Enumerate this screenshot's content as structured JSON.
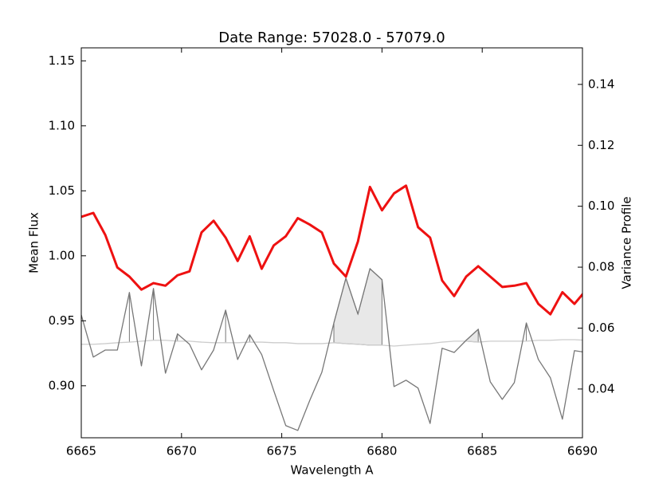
{
  "chart_data": {
    "type": "line",
    "title": "Date Range: 57028.0 - 57079.0",
    "xlabel": "Wavelength A",
    "ylabel": "Mean Flux",
    "y2label": "Variance Profile",
    "x": [
      6665.0,
      6665.6,
      6666.2,
      6666.8,
      6667.4,
      6668.0,
      6668.6,
      6669.2,
      6669.8,
      6670.4,
      6671.0,
      6671.6,
      6672.2,
      6672.8,
      6673.4,
      6674.0,
      6674.6,
      6675.2,
      6675.8,
      6676.4,
      6677.0,
      6677.6,
      6678.2,
      6678.8,
      6679.4,
      6680.0,
      6680.6,
      6681.2,
      6681.8,
      6682.4,
      6683.0,
      6683.6,
      6684.2,
      6684.8,
      6685.4,
      6686.0,
      6686.6,
      6687.2,
      6687.8,
      6688.4,
      6689.0,
      6689.6,
      6690.2
    ],
    "series": [
      {
        "color": "#ee1111",
        "axis": "y",
        "values": [
          1.03,
          1.033,
          1.016,
          0.991,
          0.984,
          0.974,
          0.979,
          0.977,
          0.985,
          0.988,
          1.018,
          1.027,
          1.014,
          0.996,
          1.015,
          0.99,
          1.008,
          1.015,
          1.029,
          1.024,
          1.018,
          0.994,
          0.984,
          1.011,
          1.053,
          1.035,
          1.048,
          1.054,
          1.022,
          1.014,
          0.981,
          0.969,
          0.984,
          0.992,
          0.984,
          0.976,
          0.977,
          0.979,
          0.963,
          0.955,
          0.972,
          0.963,
          0.974
        ]
      },
      {
        "color": "#777777",
        "axis": "y2",
        "fill": "#e8e8e8",
        "values": [
          0.0643,
          0.0505,
          0.0528,
          0.0528,
          0.0717,
          0.0476,
          0.073,
          0.0452,
          0.0581,
          0.0547,
          0.0463,
          0.0528,
          0.0659,
          0.0497,
          0.0578,
          0.0513,
          0.0395,
          0.028,
          0.0264,
          0.0363,
          0.0455,
          0.0617,
          0.0764,
          0.0646,
          0.0795,
          0.0759,
          0.0408,
          0.0429,
          0.0403,
          0.0287,
          0.0534,
          0.052,
          0.056,
          0.0596,
          0.0424,
          0.0366,
          0.0421,
          0.0617,
          0.0497,
          0.0437,
          0.0301,
          0.0526,
          0.052
        ]
      },
      {
        "color": "#cccccc",
        "axis": "y2",
        "values": [
          0.0547,
          0.0547,
          0.0549,
          0.0552,
          0.0554,
          0.0557,
          0.056,
          0.056,
          0.0557,
          0.0557,
          0.0554,
          0.0552,
          0.0552,
          0.0552,
          0.0554,
          0.0554,
          0.0552,
          0.0552,
          0.0549,
          0.0549,
          0.0549,
          0.0552,
          0.0549,
          0.0547,
          0.0544,
          0.0544,
          0.0541,
          0.0544,
          0.0547,
          0.0549,
          0.0554,
          0.0557,
          0.0557,
          0.0554,
          0.0557,
          0.0557,
          0.0557,
          0.0557,
          0.056,
          0.056,
          0.0562,
          0.0562,
          0.056
        ]
      }
    ],
    "xlim": [
      6665,
      6690
    ],
    "xticks": [
      6665,
      6670,
      6675,
      6680,
      6685,
      6690
    ],
    "ylim": [
      0.86,
      1.16
    ],
    "yticks": [
      {
        "value": 0.9,
        "label": "0.90"
      },
      0.95,
      {
        "value": 1.0,
        "label": "1.00"
      },
      1.05,
      {
        "value": 1.1,
        "label": "1.10"
      },
      1.15
    ],
    "y2lim": [
      0.024,
      0.152
    ],
    "y2ticks": [
      0.04,
      0.06,
      0.08,
      {
        "value": 0.1,
        "label": "0.10"
      },
      0.12,
      0.14
    ]
  }
}
